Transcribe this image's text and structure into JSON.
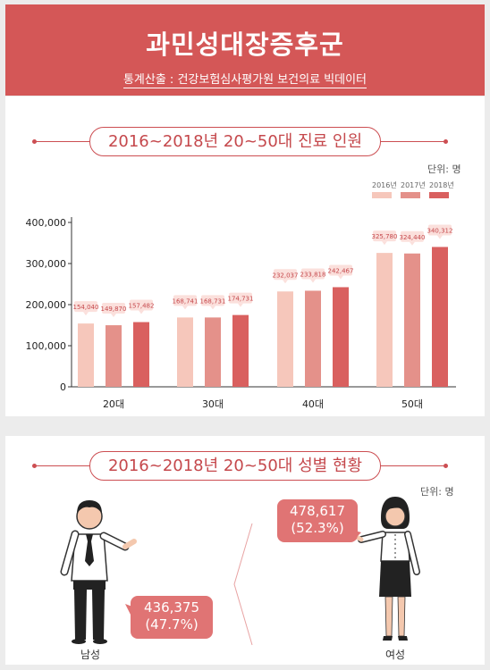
{
  "header": {
    "title": "과민성대장증후군",
    "subtitle": "통계산출 : 건강보험심사평가원 보건의료 빅데이터"
  },
  "section1": {
    "title": "2016~2018년 20~50대 진료 인원",
    "unit": "단위: 명"
  },
  "section2": {
    "title": "2016~2018년 20~50대 성별 현황",
    "unit": "단위: 명",
    "male": {
      "label": "남성",
      "value": "436,375",
      "percent": "(47.7%)"
    },
    "female": {
      "label": "여성",
      "value": "478,617",
      "percent": "(52.3%)"
    }
  },
  "colors": {
    "2016": "#f6c7bb",
    "2017": "#e4918a",
    "2018": "#d9605f",
    "accent": "#d45757"
  },
  "chart_data": {
    "type": "bar",
    "categories": [
      "20대",
      "30대",
      "40대",
      "50대"
    ],
    "series": [
      {
        "name": "2016년",
        "values": [
          154040,
          168741,
          232037,
          325780
        ],
        "labels": [
          "154,040",
          "168,741",
          "232,037",
          "325,780"
        ]
      },
      {
        "name": "2017년",
        "values": [
          149870,
          168731,
          233818,
          324440
        ],
        "labels": [
          "149,870",
          "168,731",
          "233,818",
          "324,440"
        ]
      },
      {
        "name": "2018년",
        "values": [
          157482,
          174731,
          242467,
          340312
        ],
        "labels": [
          "157,482",
          "174,731",
          "242,467",
          "340,312"
        ]
      }
    ],
    "yticks": [
      "0",
      "100,000",
      "200,000",
      "300,000",
      "400,000"
    ],
    "ylim": [
      0,
      400000
    ],
    "legend": "top-right",
    "grid": false
  }
}
